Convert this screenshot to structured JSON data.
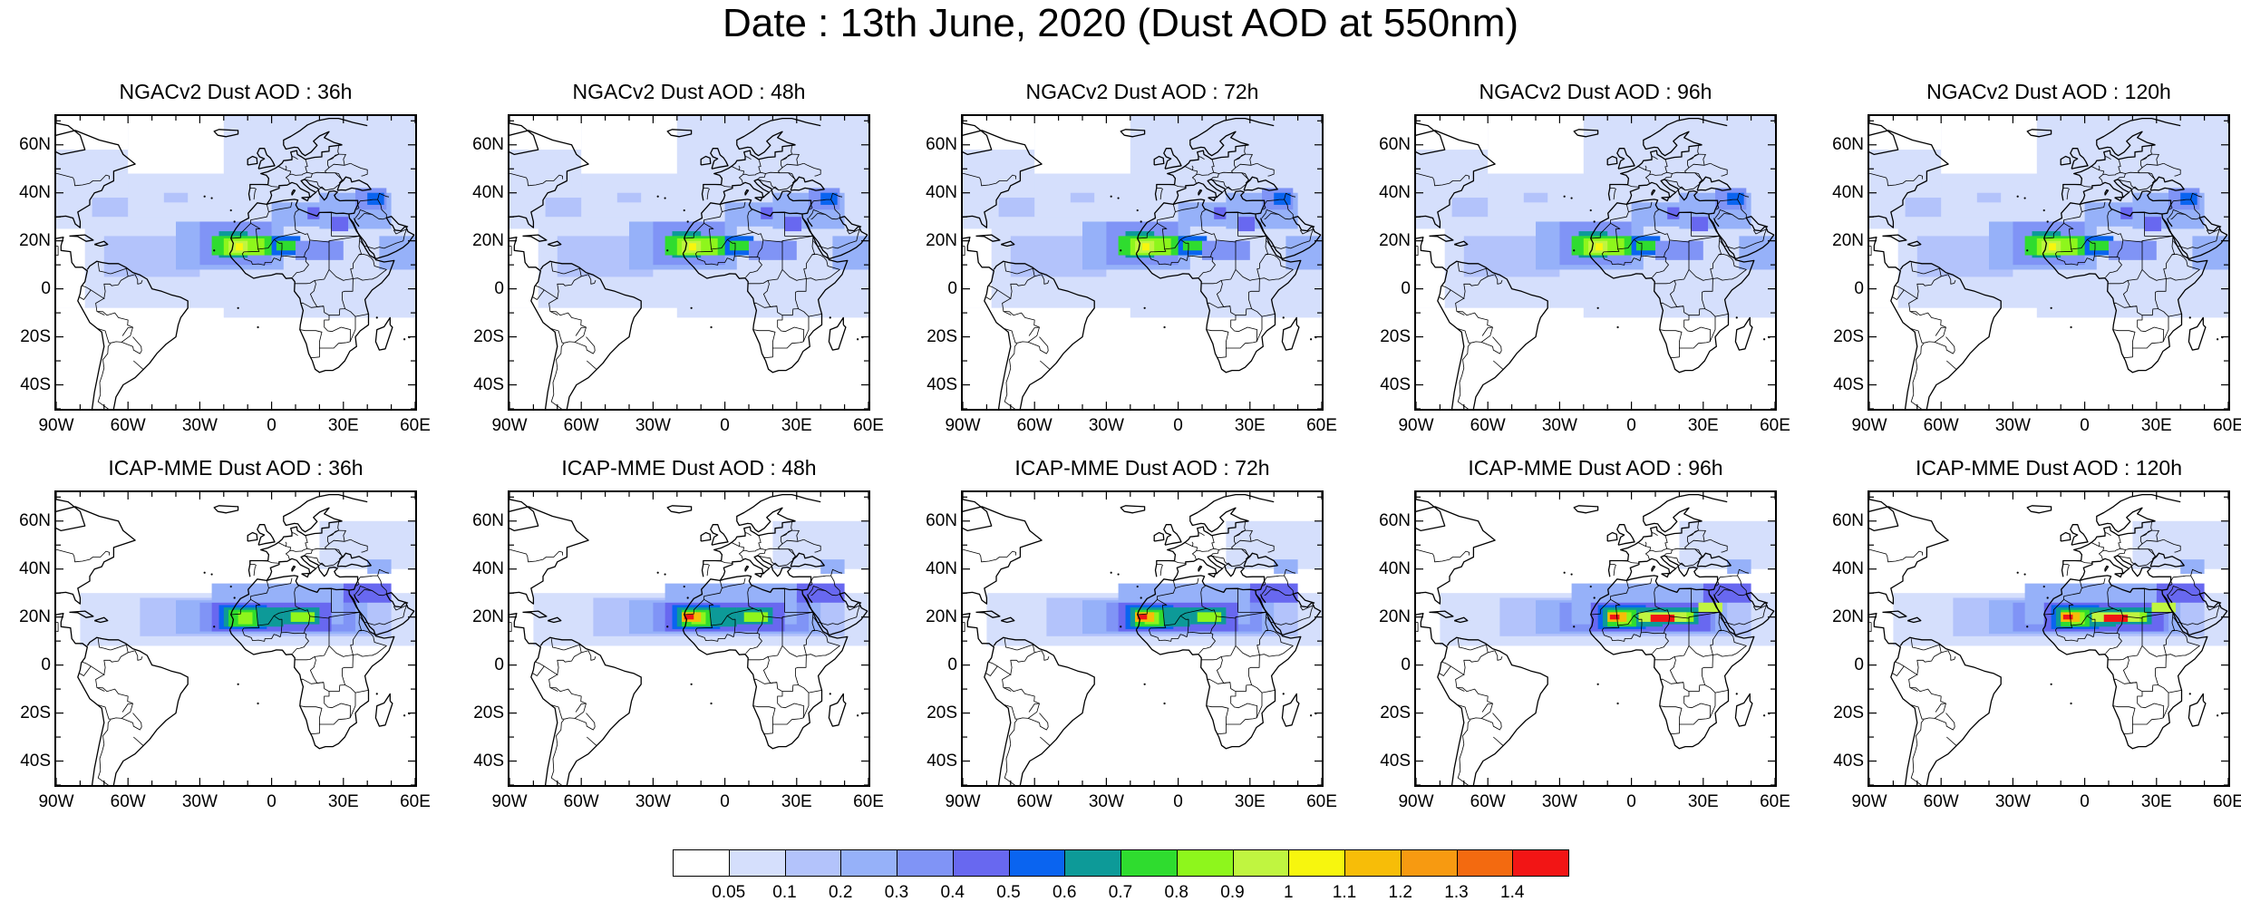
{
  "title": "Date : 13th June, 2020 (Dust AOD at 550nm)",
  "axes": {
    "lat_labels": [
      "60N",
      "40N",
      "20N",
      "0",
      "20S",
      "40S"
    ],
    "lat_values": [
      60,
      40,
      20,
      0,
      -20,
      -40
    ],
    "lon_labels": [
      "90W",
      "60W",
      "30W",
      "0",
      "30E",
      "60E"
    ],
    "lon_values": [
      -90,
      -60,
      -30,
      0,
      30,
      60
    ],
    "lat_range": [
      -50,
      72
    ],
    "lon_range": [
      -90,
      60
    ]
  },
  "panels": [
    {
      "title": "NGACv2 Dust AOD : 36h",
      "model": "NGACv2",
      "lead": 36
    },
    {
      "title": "NGACv2 Dust AOD : 48h",
      "model": "NGACv2",
      "lead": 48
    },
    {
      "title": "NGACv2 Dust AOD : 72h",
      "model": "NGACv2",
      "lead": 72
    },
    {
      "title": "NGACv2 Dust AOD : 96h",
      "model": "NGACv2",
      "lead": 96
    },
    {
      "title": "NGACv2 Dust AOD : 120h",
      "model": "NGACv2",
      "lead": 120
    },
    {
      "title": "ICAP-MME Dust AOD : 36h",
      "model": "ICAP-MME",
      "lead": 36
    },
    {
      "title": "ICAP-MME Dust AOD : 48h",
      "model": "ICAP-MME",
      "lead": 48
    },
    {
      "title": "ICAP-MME Dust AOD : 72h",
      "model": "ICAP-MME",
      "lead": 72
    },
    {
      "title": "ICAP-MME Dust AOD : 96h",
      "model": "ICAP-MME",
      "lead": 96
    },
    {
      "title": "ICAP-MME Dust AOD : 120h",
      "model": "ICAP-MME",
      "lead": 120
    }
  ],
  "colorbar": {
    "labels": [
      "0.05",
      "0.1",
      "0.2",
      "0.3",
      "0.4",
      "0.5",
      "0.6",
      "0.7",
      "0.8",
      "0.9",
      "1",
      "1.1",
      "1.2",
      "1.3",
      "1.4"
    ],
    "colors": [
      "#ffffff",
      "#d5dffc",
      "#b3c3fb",
      "#96b1f9",
      "#8094f6",
      "#6868f0",
      "#0a64f0",
      "#0d9a98",
      "#2fdc2f",
      "#8ef61c",
      "#c0f540",
      "#f7f60e",
      "#f7bd08",
      "#f79a11",
      "#f36a10",
      "#f21515"
    ]
  }
}
